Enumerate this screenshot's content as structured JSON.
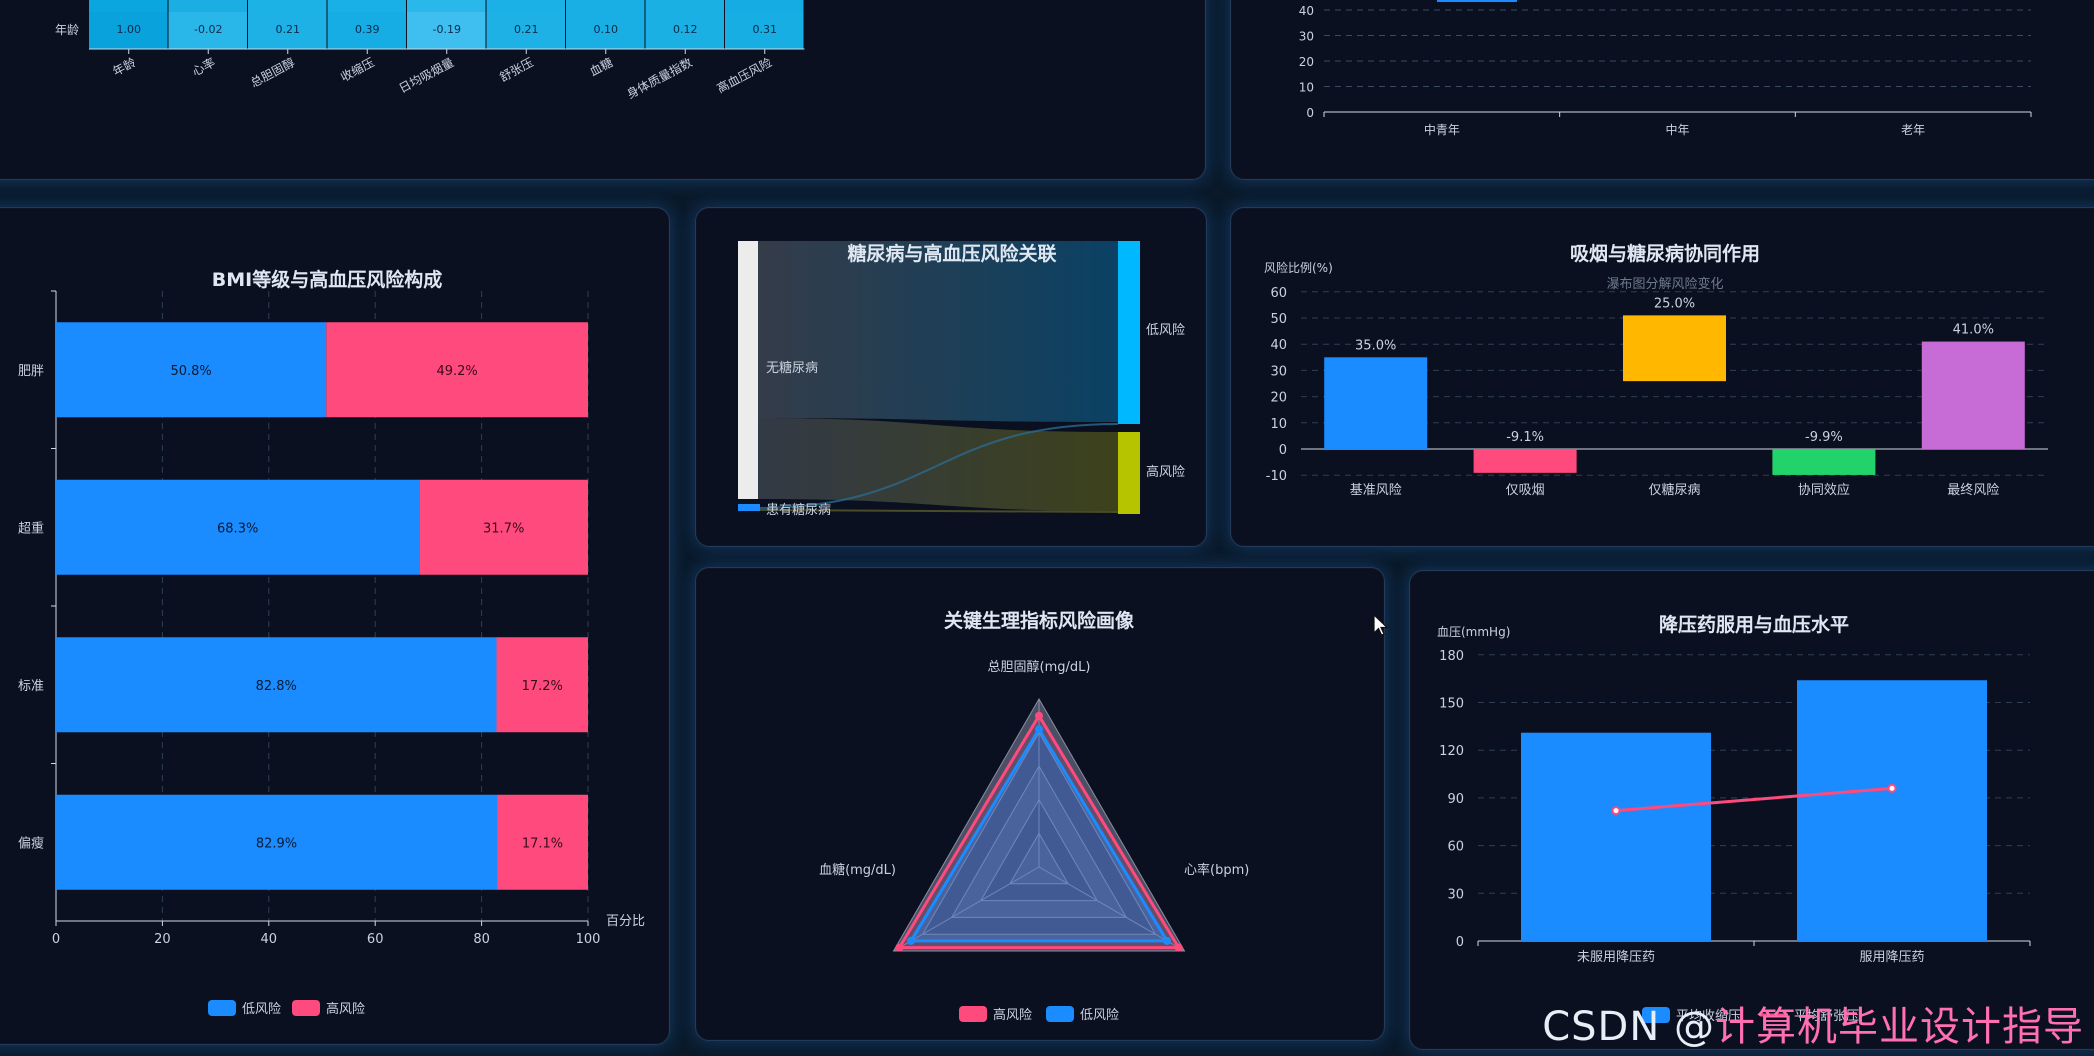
{
  "heatmap": {
    "row_label": "年龄",
    "values": [
      "1.00",
      "-0.02",
      "0.21",
      "0.39",
      "-0.19",
      "0.21",
      "0.10",
      "0.12",
      "0.31"
    ],
    "col_labels": [
      "年龄",
      "心率",
      "总胆固醇",
      "收缩压",
      "日均吸烟量",
      "舒张压",
      "血糖",
      "身体质量指数",
      "高血压风险"
    ]
  },
  "age_chart": {
    "y_ticks": [
      "40",
      "30",
      "20",
      "10",
      "0"
    ],
    "categories": [
      "中青年",
      "中年",
      "老年"
    ]
  },
  "bmi_chart": {
    "title": "BMI等级与高血压风险构成",
    "x_unit": "百分比",
    "legend": [
      "低风险",
      "高风险"
    ]
  },
  "sankey": {
    "title": "糖尿病与高血压风险关联",
    "left_nodes": [
      "无糖尿病",
      "患有糖尿病"
    ],
    "right_nodes": [
      "低风险",
      "高风险"
    ]
  },
  "waterfall": {
    "title": "吸烟与糖尿病协同作用",
    "subtitle": "瀑布图分解风险变化",
    "ylabel": "风险比例(%)"
  },
  "radar": {
    "title": "关键生理指标风险画像",
    "indicators": [
      "总胆固醇(mg/dL)",
      "心率(bpm)",
      "血糖(mg/dL)"
    ],
    "legend": [
      "高风险",
      "低风险"
    ]
  },
  "bp_chart": {
    "title": "降压药服用与血压水平",
    "ylabel": "血压(mmHg)",
    "legend": [
      "平均收缩压",
      "平均舒张压"
    ]
  },
  "watermark": {
    "prefix": "CSDN @",
    "author": "计算机毕业设计指导"
  },
  "colors": {
    "blue": "#1a8cff",
    "pink": "#ff4a7d",
    "yellow": "#ffb700",
    "green": "#21d36a",
    "violet": "#c76bd6",
    "olive": "#b6c400",
    "cyan": "#00b8ff"
  },
  "chart_data": [
    {
      "type": "bar",
      "orientation": "horizontal",
      "stacked": true,
      "title": "BMI等级与高血压风险构成",
      "categories": [
        "肥胖",
        "超重",
        "标准",
        "偏瘦"
      ],
      "series": [
        {
          "name": "低风险",
          "values": [
            50.8,
            68.3,
            82.8,
            82.9
          ]
        },
        {
          "name": "高风险",
          "values": [
            49.2,
            31.7,
            17.2,
            17.1
          ]
        }
      ],
      "xlim": [
        0,
        100
      ],
      "x_ticks": [
        0,
        20,
        40,
        60,
        80,
        100
      ],
      "xlabel": "百分比",
      "grid": true,
      "legend": "bottom"
    },
    {
      "type": "bar",
      "subtype": "waterfall",
      "title": "吸烟与糖尿病协同作用",
      "subtitle": "瀑布图分解风险变化",
      "ylabel": "风险比例(%)",
      "categories": [
        "基准风险",
        "仅吸烟",
        "仅糖尿病",
        "协同效应",
        "最终风险"
      ],
      "values": [
        35.0,
        -9.1,
        25.0,
        -9.9,
        41.0
      ],
      "bar_ranges": [
        [
          0,
          35.0
        ],
        [
          -9.1,
          0
        ],
        [
          25.9,
          51
        ],
        [
          -9.9,
          0
        ],
        [
          0,
          41.0
        ]
      ],
      "labels": [
        "35.0%",
        "-9.1%",
        "25.0%",
        "-9.9%",
        "41.0%"
      ],
      "ylim": [
        -10,
        60
      ],
      "y_ticks": [
        -10,
        0,
        10,
        20,
        30,
        40,
        50,
        60
      ],
      "grid": true
    },
    {
      "type": "bar",
      "title": "降压药服用与血压水平",
      "ylabel": "血压(mmHg)",
      "categories": [
        "未服用降压药",
        "服用降压药"
      ],
      "series": [
        {
          "name": "平均收缩压",
          "type": "bar",
          "values": [
            131,
            164
          ]
        },
        {
          "name": "平均舒张压",
          "type": "line",
          "values": [
            82,
            96
          ]
        }
      ],
      "ylim": [
        0,
        180
      ],
      "y_ticks": [
        0,
        30,
        60,
        90,
        120,
        150,
        180
      ],
      "grid": true,
      "legend": "bottom"
    },
    {
      "type": "heatmap",
      "rows": [
        "年龄"
      ],
      "columns": [
        "年龄",
        "心率",
        "总胆固醇",
        "收缩压",
        "日均吸烟量",
        "舒张压",
        "血糖",
        "身体质量指数",
        "高血压风险"
      ],
      "values": [
        [
          1.0,
          -0.02,
          0.21,
          0.39,
          -0.19,
          0.21,
          0.1,
          0.12,
          0.31
        ]
      ]
    },
    {
      "type": "radar",
      "title": "关键生理指标风险画像",
      "indicators": [
        "总胆固醇(mg/dL)",
        "心率(bpm)",
        "血糖(mg/dL)"
      ],
      "series": [
        {
          "name": "高风险",
          "values": [
            0.9,
            0.96,
            0.96
          ]
        },
        {
          "name": "低风险",
          "values": [
            0.82,
            0.88,
            0.88
          ]
        }
      ],
      "legend": "bottom"
    },
    {
      "type": "sankey",
      "title": "糖尿病与高血压风险关联",
      "nodes": [
        "无糖尿病",
        "患有糖尿病",
        "低风险",
        "高风险"
      ],
      "links": [
        {
          "source": "无糖尿病",
          "target": "低风险",
          "value": 67
        },
        {
          "source": "无糖尿病",
          "target": "高风险",
          "value": 30
        },
        {
          "source": "患有糖尿病",
          "target": "低风险",
          "value": 1
        },
        {
          "source": "患有糖尿病",
          "target": "高风险",
          "value": 2
        }
      ]
    },
    {
      "type": "line",
      "categories": [
        "中青年",
        "中年",
        "老年"
      ],
      "ylim": [
        0,
        40
      ],
      "y_ticks": [
        0,
        10,
        20,
        30,
        40
      ],
      "grid": true
    }
  ]
}
